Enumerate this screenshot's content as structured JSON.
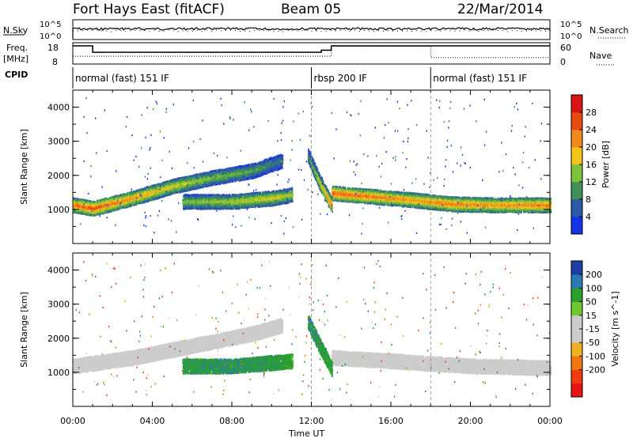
{
  "header": {
    "station": "Fort Hays East (fitACF)",
    "beam": "Beam 05",
    "date": "22/Mar/2014"
  },
  "noise_panel": {
    "left_label": "N.Sky",
    "right_label": "N.Search",
    "tick_top": "10^5",
    "tick_bottom": "10^0"
  },
  "freq_panel": {
    "left_label_line1": "Freq.",
    "left_label_line2": "[MHz]",
    "left_tick_top": "18",
    "left_tick_bottom": "8",
    "right_label": "Nave",
    "right_tick_top": "60",
    "right_tick_bottom": "0",
    "freq_steps": [
      [
        0.0,
        16.5
      ],
      [
        1.0,
        13.5
      ],
      [
        12.0,
        13.5
      ],
      [
        12.5,
        14.5
      ],
      [
        13.0,
        16.5
      ],
      [
        18.0,
        16.5
      ],
      [
        24.0,
        16.5
      ]
    ],
    "nave_steps": [
      [
        0.0,
        22
      ],
      [
        1.0,
        22
      ],
      [
        12.0,
        22
      ],
      [
        13.0,
        50
      ],
      [
        18.0,
        18
      ],
      [
        24.0,
        18
      ]
    ]
  },
  "cpid": {
    "label": "CPID",
    "segments": [
      {
        "start": 0,
        "end": 12,
        "text": "normal (fast) 151 IF"
      },
      {
        "start": 12,
        "end": 18,
        "text": "rbsp 200 IF"
      },
      {
        "start": 18,
        "end": 24,
        "text": "normal (fast) 151 IF"
      }
    ]
  },
  "x_axis": {
    "label": "Time UT",
    "ticks": [
      "00:00",
      "04:00",
      "08:00",
      "12:00",
      "16:00",
      "20:00",
      "00:00"
    ]
  },
  "colors": {
    "power": [
      "#1432e6",
      "#2d5aa8",
      "#3e8f5a",
      "#7cc23a",
      "#f2c418",
      "#f08a1e",
      "#e84a14",
      "#d81414"
    ],
    "velocity": [
      "#e81414",
      "#f03c10",
      "#f07814",
      "#f0b020",
      "#cccccc",
      "#cccccc",
      "#70c830",
      "#2ca02c",
      "#2c7ab4",
      "#1f3fa0"
    ]
  },
  "chart_data": [
    {
      "type": "heatmap",
      "title": "Power",
      "ylabel": "Slant Range [km]",
      "xlabel": "Time UT",
      "xlim": [
        0,
        24
      ],
      "ylim": [
        0,
        4500
      ],
      "y_ticks": [
        1000,
        2000,
        3000,
        4000
      ],
      "colorbar": {
        "label": "Power [dB]",
        "ticks": [
          4,
          8,
          12,
          16,
          20,
          24,
          28
        ],
        "range": [
          0,
          32
        ]
      },
      "features": [
        {
          "name": "main echo band",
          "points": [
            [
              0.0,
              1150,
              24
            ],
            [
              1.0,
              1050,
              27
            ],
            [
              3.0,
              1350,
              22
            ],
            [
              5.0,
              1700,
              18
            ],
            [
              7.0,
              1950,
              14
            ],
            [
              9.0,
              2150,
              12
            ],
            [
              10.5,
              2450,
              8
            ]
          ]
        },
        {
          "name": "late band",
          "points": [
            [
              13.0,
              1500,
              26
            ],
            [
              15.0,
              1400,
              24
            ],
            [
              17.0,
              1300,
              22
            ],
            [
              19.0,
              1180,
              24
            ],
            [
              21.0,
              1150,
              22
            ],
            [
              24.0,
              1150,
              24
            ]
          ]
        },
        {
          "name": "lower band",
          "points": [
            [
              5.5,
              1250,
              14
            ],
            [
              8.0,
              1250,
              16
            ],
            [
              10.0,
              1350,
              18
            ],
            [
              11.0,
              1450,
              16
            ]
          ]
        },
        {
          "name": "descending streak",
          "points": [
            [
              11.8,
              2600,
              10
            ],
            [
              12.4,
              1800,
              18
            ],
            [
              13.0,
              1150,
              24
            ]
          ]
        }
      ]
    },
    {
      "type": "heatmap",
      "title": "Velocity",
      "ylabel": "Slant Range [km]",
      "xlabel": "Time UT",
      "xlim": [
        0,
        24
      ],
      "ylim": [
        0,
        4500
      ],
      "y_ticks": [
        1000,
        2000,
        3000,
        4000
      ],
      "colorbar": {
        "label": "Velocity [m s^-1]",
        "ticks": [
          200,
          100,
          50,
          15,
          -15,
          -50,
          -100,
          -200
        ]
      },
      "features": [
        {
          "name": "ground scatter band",
          "points": [
            [
              0.0,
              1200,
              0
            ],
            [
              3.0,
              1450,
              0
            ],
            [
              6.0,
              1800,
              0
            ],
            [
              9.0,
              2150,
              0
            ],
            [
              10.5,
              2400,
              0
            ]
          ]
        },
        {
          "name": "late ground scatter",
          "points": [
            [
              13.0,
              1450,
              0
            ],
            [
              16.0,
              1350,
              0
            ],
            [
              20.0,
              1200,
              0
            ],
            [
              24.0,
              1150,
              0
            ]
          ]
        },
        {
          "name": "positive velocity region",
          "points": [
            [
              5.5,
              1200,
              60
            ],
            [
              8.0,
              1200,
              70
            ],
            [
              10.0,
              1300,
              60
            ],
            [
              11.0,
              1350,
              50
            ]
          ]
        },
        {
          "name": "descending streak",
          "points": [
            [
              11.8,
              2500,
              70
            ],
            [
              12.4,
              1800,
              60
            ],
            [
              13.0,
              1100,
              50
            ]
          ]
        }
      ]
    }
  ]
}
